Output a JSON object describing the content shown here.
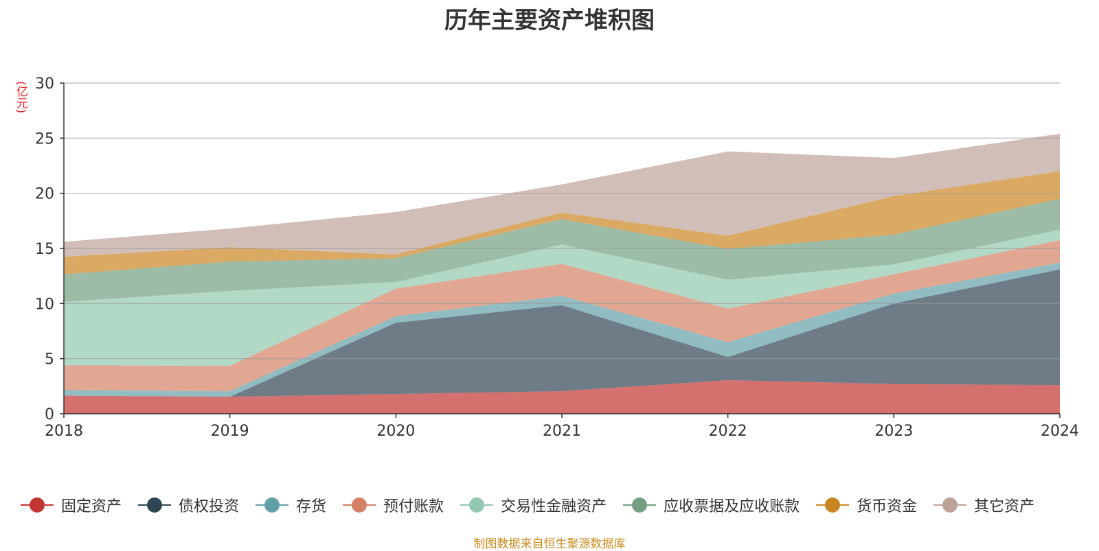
{
  "title": "历年主要资产堆积图",
  "unit_label": "(亿元)",
  "source": "制图数据来自恒生聚源数据库",
  "chart_data": {
    "type": "area",
    "stacked": true,
    "title": "历年主要资产堆积图",
    "ylabel": "(亿元)",
    "x": [
      "2018",
      "2019",
      "2020",
      "2021",
      "2022",
      "2023",
      "2024"
    ],
    "ylim": [
      0,
      30
    ],
    "yticks": [
      0,
      5,
      10,
      15,
      20,
      25,
      30
    ],
    "grid": true,
    "legend_position": "bottom",
    "series": [
      {
        "name": "固定资产",
        "color": "#c23531",
        "values": [
          1.65,
          1.55,
          1.8,
          2.05,
          3.05,
          2.7,
          2.6
        ]
      },
      {
        "name": "债权投资",
        "color": "#2f4554",
        "values": [
          0.0,
          0.0,
          6.45,
          7.8,
          2.1,
          7.3,
          10.5
        ]
      },
      {
        "name": "存货",
        "color": "#61a0a8",
        "values": [
          0.5,
          0.5,
          0.6,
          0.85,
          1.35,
          0.9,
          0.6
        ]
      },
      {
        "name": "预付账款",
        "color": "#d48265",
        "values": [
          2.25,
          2.3,
          2.5,
          2.9,
          3.05,
          1.75,
          2.05
        ]
      },
      {
        "name": "交易性金融资产",
        "color": "#91c7ae",
        "values": [
          5.75,
          6.8,
          0.6,
          1.75,
          2.6,
          0.9,
          0.95
        ]
      },
      {
        "name": "应收票据及应收账款",
        "color": "#749f83",
        "values": [
          2.5,
          2.65,
          2.15,
          2.3,
          2.8,
          2.7,
          2.8
        ]
      },
      {
        "name": "货币资金",
        "color": "#ca8622",
        "values": [
          1.6,
          1.3,
          0.35,
          0.6,
          1.2,
          3.5,
          2.5
        ]
      },
      {
        "name": "其它资产",
        "color": "#bda29a",
        "values": [
          1.35,
          1.7,
          3.85,
          2.55,
          7.65,
          3.45,
          3.4
        ]
      }
    ]
  }
}
